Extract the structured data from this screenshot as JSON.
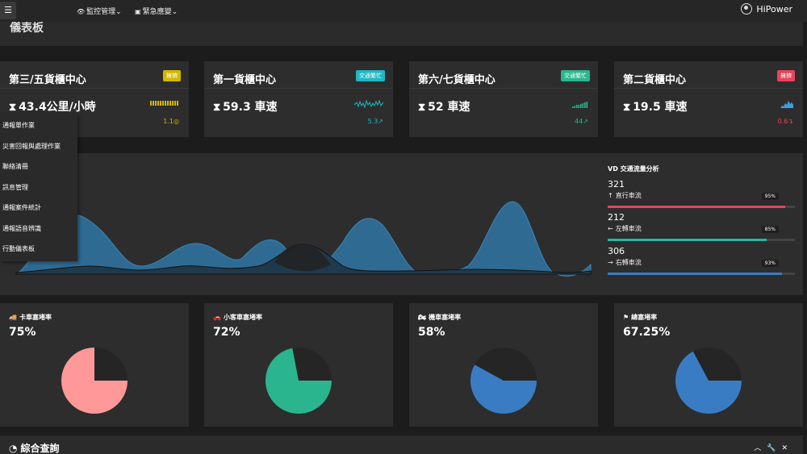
{
  "topbar": {
    "menu_icon": "☰",
    "nav": [
      {
        "icon": "eye-icon",
        "label": "監控管理"
      },
      {
        "icon": "briefcase-icon",
        "label": "緊急應變"
      }
    ],
    "user": "HiPower"
  },
  "page_title": "儀表板",
  "cards": [
    {
      "name": "第三/五貨櫃中心",
      "badge": "擁擠",
      "badge_color": "#d4b800",
      "value": "43.4公里/小時",
      "delta": "1.1",
      "delta_color": "#d4b800"
    },
    {
      "name": "第一貨櫃中心",
      "badge": "交通繁忙",
      "badge_color": "#1fb8c4",
      "value": "59.3 車速",
      "delta": "5.3",
      "delta_color": "#1fb8c4"
    },
    {
      "name": "第六/七貨櫃中心",
      "badge": "交通繁忙",
      "badge_color": "#2bb58e",
      "value": "52 車速",
      "delta": "44",
      "delta_color": "#2bb58e"
    },
    {
      "name": "第二貨櫃中心",
      "badge": "擁擠",
      "badge_color": "#e8445a",
      "value": "19.5 車速",
      "delta": "0.6",
      "delta_color": "#e8445a"
    }
  ],
  "side_menu": [
    "通報單作業",
    "災害回報與處理作業",
    "聯絡清冊",
    "訊息管理",
    "通報案件統計",
    "通報語音辨識",
    "行動儀表板"
  ],
  "vd": {
    "title": "VD 交通流量分析",
    "rows": [
      {
        "value": "321",
        "arrow": "↑",
        "label": "直行車流",
        "pct": "95%",
        "fill": 0.95,
        "color": "#e8445a"
      },
      {
        "value": "212",
        "arrow": "←",
        "label": "左轉車流",
        "pct": "85%",
        "fill": 0.85,
        "color": "#2bb5a0"
      },
      {
        "value": "306",
        "arrow": "→",
        "label": "右轉車流",
        "pct": "93%",
        "fill": 0.93,
        "color": "#3a7cc4"
      }
    ]
  },
  "pies": [
    {
      "icon": "truck-icon",
      "label": "卡車塞堵率",
      "value": "75%",
      "fraction": 0.75,
      "color": "#ff9999"
    },
    {
      "icon": "car-icon",
      "label": "小客車塞堵率",
      "value": "72%",
      "fraction": 0.72,
      "color": "#2bb58e"
    },
    {
      "icon": "motorcycle-icon",
      "label": "機車塞堵率",
      "value": "58%",
      "fraction": 0.58,
      "color": "#3a7cc4"
    },
    {
      "icon": "flag-icon",
      "label": "總塞堵率",
      "value": "67.25%",
      "fraction": 0.6725,
      "color": "#3a7cc4"
    }
  ],
  "bottom": {
    "title": "綜合查詢",
    "icons": [
      "chevron-up-icon",
      "wrench-icon",
      "close-icon"
    ]
  }
}
